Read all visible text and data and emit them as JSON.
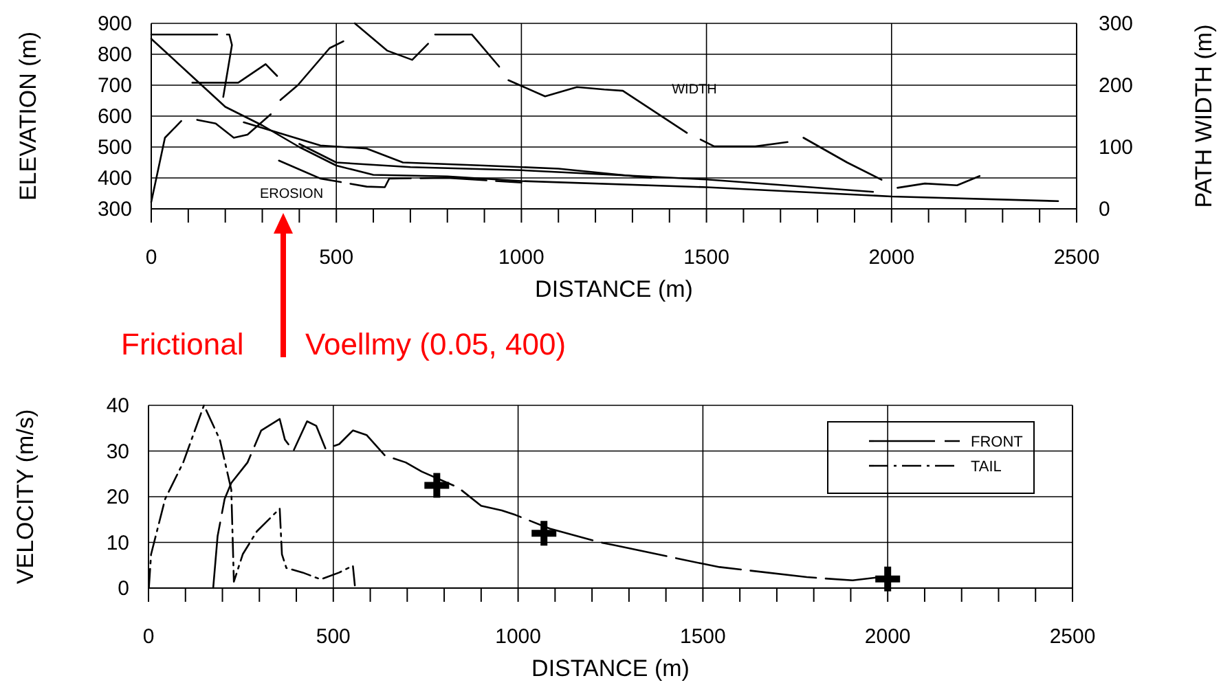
{
  "chart_data": [
    {
      "type": "line",
      "xlabel": "DISTANCE (m)",
      "ylabel": "ELEVATION (m)",
      "y2label": "PATH WIDTH (m)",
      "xlim": [
        0,
        2500
      ],
      "ylim": [
        300,
        900
      ],
      "y2lim": [
        0,
        300
      ],
      "xticks": [
        0,
        {
          "value": 100,
          "label": null
        },
        {
          "value": 200,
          "label": null
        },
        {
          "value": 300,
          "label": null
        },
        {
          "value": 400,
          "label": null
        },
        500,
        {
          "value": 600,
          "label": null
        },
        {
          "value": 700,
          "label": null
        },
        {
          "value": 800,
          "label": null
        },
        {
          "value": 900,
          "label": null
        },
        1000,
        {
          "value": 1100,
          "label": null
        },
        {
          "value": 1200,
          "label": null
        },
        {
          "value": 1300,
          "label": null
        },
        {
          "value": 1400,
          "label": null
        },
        1500,
        {
          "value": 1600,
          "label": null
        },
        {
          "value": 1700,
          "label": null
        },
        {
          "value": 1800,
          "label": null
        },
        {
          "value": 1900,
          "label": null
        },
        2000,
        {
          "value": 2100,
          "label": null
        },
        {
          "value": 2200,
          "label": null
        },
        {
          "value": 2300,
          "label": null
        },
        {
          "value": 2400,
          "label": null
        },
        2500
      ],
      "yticks": [
        300,
        400,
        500,
        600,
        700,
        800,
        900
      ],
      "y2ticks": [
        0,
        100,
        200,
        300
      ],
      "grid": true,
      "legend": false,
      "series": [
        {
          "color": "#000000",
          "line_style": "solid",
          "x": [
            0,
            100,
            200,
            300,
            400,
            500,
            600,
            800,
            1000,
            1500,
            2000,
            2450
          ],
          "values": [
            850,
            740,
            630,
            570,
            500,
            440,
            410,
            405,
            390,
            370,
            340,
            325
          ]
        },
        {
          "color": "#000000",
          "line_style": "solid",
          "x": [
            400,
            500,
            700,
            1000,
            1500,
            1950
          ],
          "values": [
            510,
            450,
            435,
            425,
            395,
            355
          ]
        },
        {
          "color": "#000000",
          "line_style": "solid",
          "x": [
            250,
            457,
            582,
            680,
            900,
            1100,
            1350
          ],
          "values": [
            580,
            505,
            495,
            450,
            440,
            430,
            400
          ]
        },
        {
          "color": "#000000",
          "line_style": "dashed",
          "x": [
            345,
            457,
            582,
            631,
            643,
            800,
            1000
          ],
          "values": [
            456,
            398,
            372,
            370,
            398,
            400,
            385
          ]
        },
        {
          "color": "#000000",
          "line_style": "dashed",
          "x": [
            0,
            211,
            218,
            193
          ],
          "values": [
            864,
            864,
            830,
            651
          ]
        },
        {
          "color": "#000000",
          "line_style": "solid",
          "axis": "y2",
          "x": [
            0,
            37,
            81
          ],
          "values": [
            11,
            115,
            142
          ]
        },
        {
          "color": "#000000",
          "line_style": "solid",
          "axis": "y2",
          "x": [
            124,
            174,
            223,
            260,
            323
          ],
          "values": [
            144,
            138,
            115,
            120,
            153
          ]
        },
        {
          "color": "#000000",
          "line_style": "solid",
          "axis": "y2",
          "x": [
            111,
            235,
            309,
            340
          ],
          "values": [
            204,
            204,
            234,
            215
          ]
        },
        {
          "color": "#000000",
          "line_style": "solid",
          "axis": "y2",
          "x": [
            349,
            396,
            482,
            519
          ],
          "values": [
            176,
            200,
            260,
            271
          ]
        },
        {
          "color": "#000000",
          "line_style": "solid",
          "axis": "y2",
          "x": [
            550,
            637,
            705,
            748
          ],
          "values": [
            300,
            256,
            241,
            267
          ]
        },
        {
          "color": "#000000",
          "line_style": "solid",
          "axis": "y2",
          "x": [
            767,
            866,
            940
          ],
          "values": [
            282,
            282,
            230
          ]
        },
        {
          "color": "#000000",
          "line_style": "solid",
          "axis": "y2",
          "x": [
            965,
            1064,
            1150,
            1224,
            1274,
            1447
          ],
          "values": [
            208,
            182,
            197,
            193,
            191,
            123
          ]
        },
        {
          "color": "#000000",
          "line_style": "solid",
          "axis": "y2",
          "x": [
            1484,
            1521,
            1632,
            1719
          ],
          "values": [
            112,
            101,
            101,
            108
          ]
        },
        {
          "color": "#000000",
          "line_style": "solid",
          "axis": "y2",
          "x": [
            1762,
            1880,
            1973
          ],
          "values": [
            115,
            75,
            47
          ]
        },
        {
          "color": "#000000",
          "line_style": "solid",
          "axis": "y2",
          "x": [
            2016,
            2090,
            2177,
            2238
          ],
          "values": [
            34,
            41,
            38,
            53
          ]
        }
      ],
      "annotations": [
        "WIDTH",
        "EROSION",
        "Frictional",
        "Voellmy (0.05, 400)"
      ]
    },
    {
      "type": "line",
      "xlabel": "DISTANCE (m)",
      "ylabel": "VELOCITY (m/s)",
      "xlim": [
        0,
        2500
      ],
      "ylim": [
        0,
        40
      ],
      "xticks": [
        0,
        {
          "value": 100,
          "label": null
        },
        {
          "value": 200,
          "label": null
        },
        {
          "value": 300,
          "label": null
        },
        {
          "value": 400,
          "label": null
        },
        500,
        {
          "value": 600,
          "label": null
        },
        {
          "value": 700,
          "label": null
        },
        {
          "value": 800,
          "label": null
        },
        {
          "value": 900,
          "label": null
        },
        1000,
        {
          "value": 1100,
          "label": null
        },
        {
          "value": 1200,
          "label": null
        },
        {
          "value": 1300,
          "label": null
        },
        {
          "value": 1400,
          "label": null
        },
        1500,
        {
          "value": 1600,
          "label": null
        },
        {
          "value": 1700,
          "label": null
        },
        {
          "value": 1800,
          "label": null
        },
        {
          "value": 1900,
          "label": null
        },
        2000,
        {
          "value": 2100,
          "label": null
        },
        {
          "value": 2200,
          "label": null
        },
        {
          "value": 2300,
          "label": null
        },
        {
          "value": 2400,
          "label": null
        },
        2500
      ],
      "yticks": [
        0,
        10,
        20,
        30,
        40
      ],
      "grid": true,
      "legend": "top right",
      "series": [
        {
          "name": "FRONT",
          "color": "#000000",
          "line_style": "dashed",
          "x": [
            175,
            187,
            206,
            224,
            268,
            305,
            355,
            369,
            392,
            429,
            454,
            479,
            516,
            553,
            590,
            640,
            696,
            739,
            838,
            900,
            956,
            993,
            1086,
            1223,
            1260,
            1495,
            1545,
            1781,
            1830,
            1905,
            1979
          ],
          "values": [
            0,
            11.4,
            19.5,
            23,
            27.5,
            34.5,
            37,
            32.5,
            30,
            36.5,
            35.5,
            30.5,
            31.5,
            34.5,
            33.5,
            29,
            27.5,
            25.5,
            22,
            18,
            17,
            16,
            13,
            10,
            9.4,
            5.4,
            4.6,
            2.4,
            2.1,
            1.7,
            2.4
          ]
        },
        {
          "name": "TAIL",
          "color": "#000000",
          "line_style": "dotted",
          "x": [
            1,
            7,
            45,
            94,
            150,
            193,
            224,
            231,
            255,
            293,
            355,
            361,
            373,
            417,
            466,
            516,
            553,
            559
          ],
          "values": [
            0,
            7.4,
            19.5,
            27.5,
            40,
            32.5,
            21.5,
            1.4,
            7.4,
            12.4,
            17.4,
            7.4,
            4.4,
            3.4,
            1.9,
            3.4,
            4.9,
            0
          ]
        },
        {
          "type": "scatter",
          "marker": "cross",
          "color": "#000000",
          "x": [
            780,
            1070,
            2000
          ],
          "values": [
            22.5,
            12,
            2
          ]
        }
      ]
    }
  ]
}
